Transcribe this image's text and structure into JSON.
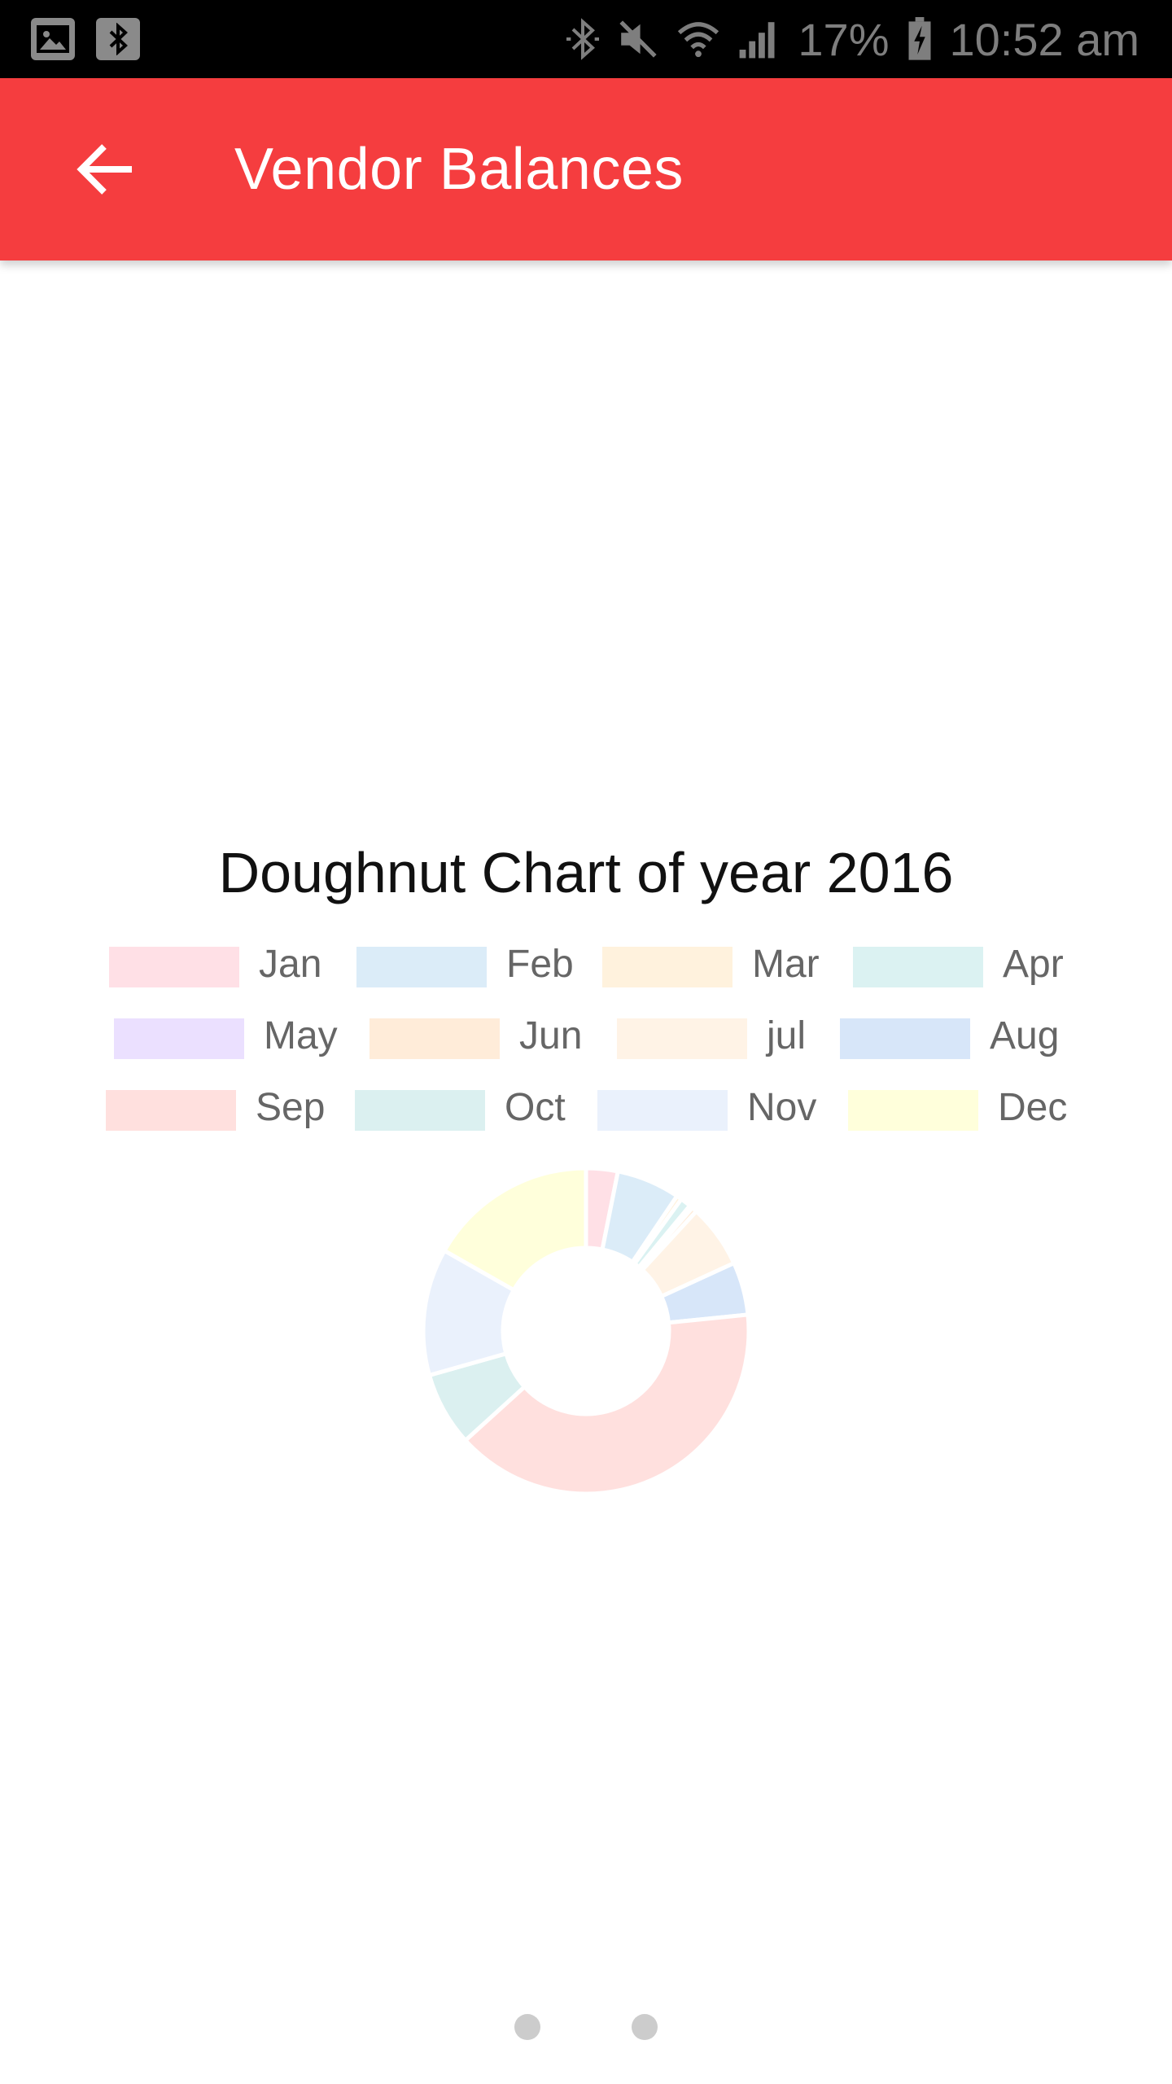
{
  "status_bar": {
    "battery_percent": "17%",
    "time": "10:52 am",
    "icons": [
      "gallery-icon",
      "bluetooth-box-icon",
      "bluetooth-icon",
      "mute-icon",
      "wifi-icon",
      "signal-icon",
      "battery-charging-icon"
    ]
  },
  "app_bar": {
    "title": "Vendor Balances",
    "back_icon": "arrow-left-icon",
    "color": "#f53d3f"
  },
  "chart_data": {
    "type": "pie",
    "title": "Doughnut Chart of year 2016",
    "legend_position": "top",
    "categories": [
      "Jan",
      "Feb",
      "Mar",
      "Apr",
      "May",
      "Jun",
      "jul",
      "Aug",
      "Sep",
      "Oct",
      "Nov",
      "Dec"
    ],
    "values": [
      3,
      6,
      0.5,
      1,
      0.3,
      0.5,
      6,
      5,
      38,
      7,
      12,
      16
    ],
    "colors": [
      "#ffe0e6",
      "#dbecf8",
      "#fff2dd",
      "#dbf2f2",
      "#ebe0ff",
      "#ffecd9",
      "#fff3e6",
      "#d7e6f9",
      "#ffe0de",
      "#dbf0f0",
      "#eaf1fc",
      "#ffffdb"
    ]
  },
  "pager": {
    "pages": 2
  }
}
